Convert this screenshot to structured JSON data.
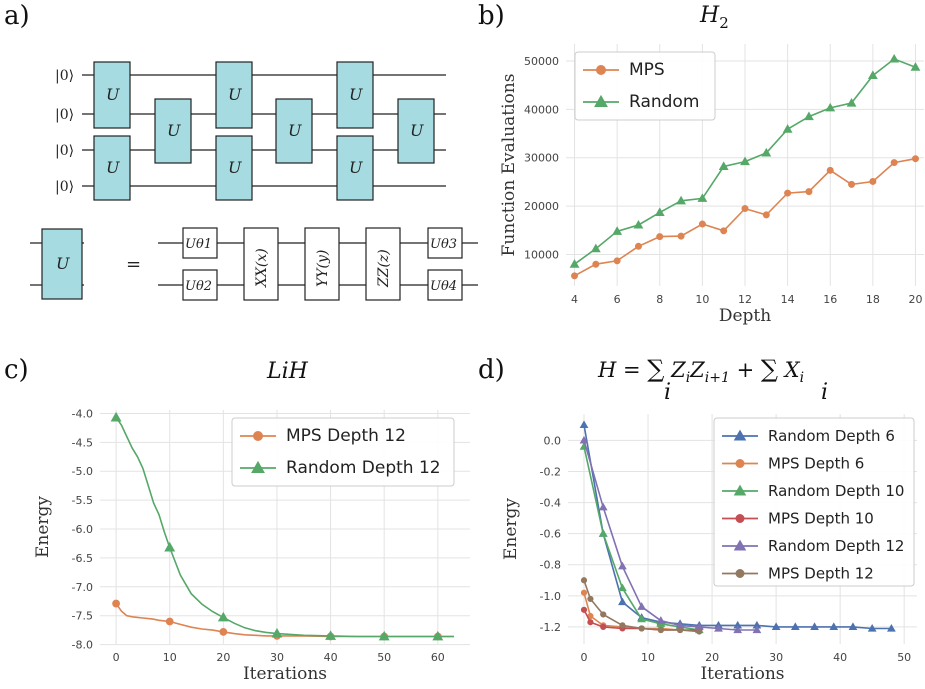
{
  "panels": {
    "a": {
      "label": "a)",
      "qubit_labels": [
        "|0⟩",
        "|0⟩",
        "|0⟩",
        "|0⟩"
      ],
      "gate_label": "U",
      "equals": "=",
      "decomp_labels": [
        "Uθ1",
        "Uθ2",
        "XX(x)",
        "YY(y)",
        "ZZ(z)",
        "Uθ3",
        "Uθ4"
      ]
    },
    "b": {
      "label": "b)"
    },
    "c": {
      "label": "c)"
    },
    "d": {
      "label": "d)"
    }
  },
  "colors": {
    "mps": "#dd8452",
    "random": "#55a868",
    "mps_red": "#c44e52",
    "random_blue": "#4c72b0",
    "random_purple": "#8172b3",
    "mps_brown": "#937860",
    "gate": "#a6dce1",
    "grid": "#e3e3e3"
  },
  "chart_data": [
    {
      "id": "b",
      "type": "line",
      "title": "H2",
      "xlabel": "Depth",
      "ylabel": "Function Evaluations",
      "xlim": [
        3.6,
        20.4
      ],
      "ylim": [
        3500,
        53500
      ],
      "xticks": [
        4,
        6,
        8,
        10,
        12,
        14,
        16,
        18,
        20
      ],
      "yticks": [
        10000,
        20000,
        30000,
        40000,
        50000
      ],
      "grid": true,
      "legend": "top-left",
      "series": [
        {
          "name": "MPS",
          "marker": "circle",
          "color": "#dd8452",
          "x": [
            4,
            5,
            6,
            7,
            8,
            9,
            10,
            11,
            12,
            13,
            14,
            15,
            16,
            17,
            18,
            19,
            20
          ],
          "y": [
            5600,
            8000,
            8700,
            11700,
            13700,
            13800,
            16300,
            14900,
            19500,
            18200,
            22700,
            23000,
            27400,
            24500,
            25100,
            29000,
            29800
          ]
        },
        {
          "name": "Random",
          "marker": "triangle",
          "color": "#55a868",
          "x": [
            4,
            5,
            6,
            7,
            8,
            9,
            10,
            11,
            12,
            13,
            14,
            15,
            16,
            17,
            18,
            19,
            20
          ],
          "y": [
            8000,
            11200,
            14800,
            16100,
            18700,
            21100,
            21600,
            28200,
            29200,
            31000,
            35900,
            38500,
            40300,
            41300,
            47000,
            50400,
            48700
          ]
        }
      ]
    },
    {
      "id": "c",
      "type": "line",
      "title": "LiH",
      "xlabel": "Iterations",
      "ylabel": "Energy",
      "xlim": [
        -3,
        66
      ],
      "ylim": [
        -7.99,
        -3.94
      ],
      "xticks": [
        0,
        10,
        20,
        30,
        40,
        50,
        60
      ],
      "yticks": [
        -4.0,
        -4.5,
        -5.0,
        -5.5,
        -6.0,
        -6.5,
        -7.0,
        -7.5,
        -8.0
      ],
      "ytick_labels": [
        "-4.0",
        "-4.5",
        "-5.0",
        "-5.5",
        "-6.0",
        "-6.5",
        "-7.0",
        "-7.5",
        "-8.0"
      ],
      "grid": true,
      "legend": "top-right",
      "series": [
        {
          "name": "MPS Depth 12",
          "marker": "circle",
          "color": "#dd8452",
          "x": [
            0,
            1,
            2,
            3,
            4,
            5,
            6,
            7,
            8,
            9,
            10,
            12,
            14,
            16,
            18,
            20,
            22,
            24,
            26,
            28,
            30,
            35,
            40,
            45,
            50,
            55,
            60,
            63
          ],
          "y": [
            -7.29,
            -7.42,
            -7.5,
            -7.52,
            -7.53,
            -7.54,
            -7.55,
            -7.56,
            -7.58,
            -7.59,
            -7.6,
            -7.65,
            -7.7,
            -7.73,
            -7.75,
            -7.78,
            -7.81,
            -7.83,
            -7.84,
            -7.85,
            -7.85,
            -7.85,
            -7.86,
            -7.86,
            -7.86,
            -7.86,
            -7.86,
            -7.86
          ],
          "markers_x": [
            0,
            10,
            20,
            30,
            40,
            50,
            60
          ]
        },
        {
          "name": "Random Depth 12",
          "marker": "triangle",
          "color": "#55a868",
          "x": [
            0,
            1,
            2,
            3,
            4,
            5,
            6,
            7,
            8,
            9,
            10,
            12,
            14,
            16,
            18,
            20,
            22,
            24,
            26,
            28,
            30,
            35,
            40,
            45,
            50,
            55,
            60,
            63
          ],
          "y": [
            -4.07,
            -4.2,
            -4.4,
            -4.6,
            -4.75,
            -4.95,
            -5.25,
            -5.55,
            -5.75,
            -6.05,
            -6.32,
            -6.8,
            -7.12,
            -7.3,
            -7.43,
            -7.53,
            -7.63,
            -7.71,
            -7.76,
            -7.79,
            -7.81,
            -7.84,
            -7.85,
            -7.86,
            -7.86,
            -7.86,
            -7.86,
            -7.86
          ],
          "markers_x": [
            0,
            10,
            20,
            30,
            40,
            50,
            60
          ]
        }
      ]
    },
    {
      "id": "d",
      "type": "line",
      "title": "H = Σi ZiZi+1 + Σi Xi",
      "xlabel": "Iterations",
      "ylabel": "Energy",
      "xlim": [
        -2.5,
        52
      ],
      "ylim": [
        -1.31,
        0.17
      ],
      "xticks": [
        0,
        10,
        20,
        30,
        40,
        50
      ],
      "yticks": [
        0.0,
        -0.2,
        -0.4,
        -0.6,
        -0.8,
        -1.0,
        -1.2
      ],
      "ytick_labels": [
        "0.0",
        "-0.2",
        "-0.4",
        "-0.6",
        "-0.8",
        "-1.0",
        "-1.2"
      ],
      "grid": true,
      "legend": "top-right",
      "series": [
        {
          "name": "Random Depth 6",
          "marker": "triangle",
          "color": "#4c72b0",
          "x": [
            0,
            3,
            6,
            9,
            12,
            15,
            18,
            21,
            24,
            27,
            30,
            33,
            36,
            39,
            42,
            45,
            48
          ],
          "y": [
            0.1,
            -0.6,
            -1.04,
            -1.14,
            -1.17,
            -1.18,
            -1.19,
            -1.19,
            -1.19,
            -1.19,
            -1.2,
            -1.2,
            -1.2,
            -1.2,
            -1.2,
            -1.21,
            -1.21
          ]
        },
        {
          "name": "MPS Depth 6",
          "marker": "circle",
          "color": "#dd8452",
          "x": [
            0,
            1,
            3,
            6,
            9,
            12,
            15
          ],
          "y": [
            -0.98,
            -1.13,
            -1.19,
            -1.2,
            -1.21,
            -1.21,
            -1.22
          ]
        },
        {
          "name": "Random Depth 10",
          "marker": "triangle",
          "color": "#55a868",
          "x": [
            0,
            3,
            6,
            9,
            12,
            15,
            18
          ],
          "y": [
            -0.04,
            -0.6,
            -0.95,
            -1.15,
            -1.18,
            -1.2,
            -1.22
          ]
        },
        {
          "name": "MPS Depth 10",
          "marker": "circle",
          "color": "#c44e52",
          "x": [
            0,
            1,
            3,
            6,
            9,
            12,
            15,
            18
          ],
          "y": [
            -1.09,
            -1.17,
            -1.2,
            -1.21,
            -1.21,
            -1.22,
            -1.22,
            -1.22
          ]
        },
        {
          "name": "Random Depth 12",
          "marker": "triangle",
          "color": "#8172b3",
          "x": [
            0,
            3,
            6,
            9,
            12,
            15,
            18,
            21,
            24,
            27
          ],
          "y": [
            0.0,
            -0.43,
            -0.81,
            -1.07,
            -1.16,
            -1.19,
            -1.2,
            -1.21,
            -1.22,
            -1.22
          ]
        },
        {
          "name": "MPS Depth 12",
          "marker": "circle",
          "color": "#937860",
          "x": [
            0,
            1,
            3,
            6,
            9,
            12,
            15,
            18
          ],
          "y": [
            -0.9,
            -1.02,
            -1.12,
            -1.19,
            -1.21,
            -1.22,
            -1.22,
            -1.23
          ]
        }
      ]
    }
  ]
}
